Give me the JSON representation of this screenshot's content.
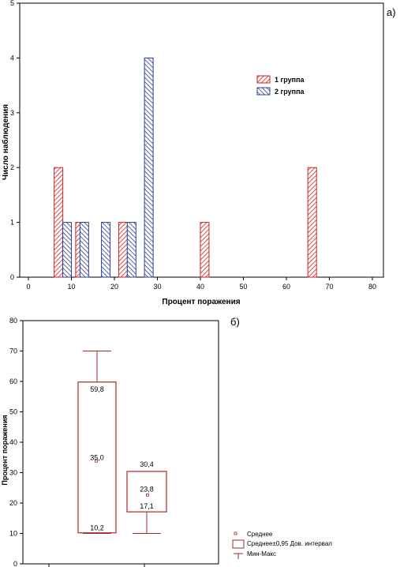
{
  "chart_data": [
    {
      "type": "bar",
      "panel_label": "а)",
      "xlabel": "Процент поражения",
      "ylabel": "Число наблюдения",
      "xlim": [
        0,
        80
      ],
      "ylim": [
        0,
        5
      ],
      "xticks": [
        0,
        10,
        20,
        30,
        40,
        50,
        60,
        70,
        80
      ],
      "yticks": [
        0,
        1,
        2,
        3,
        4,
        5
      ],
      "grid": false,
      "legend_position": "upper-right",
      "series": [
        {
          "name": "1 группа",
          "color": "#cc2222",
          "x": [
            7,
            12,
            22,
            41,
            66
          ],
          "values": [
            2,
            1,
            1,
            1,
            2
          ]
        },
        {
          "name": "2 группа",
          "color": "#2b3c8f",
          "x": [
            9,
            13,
            18,
            24,
            28
          ],
          "values": [
            1,
            1,
            1,
            1,
            4
          ]
        }
      ]
    },
    {
      "type": "box",
      "panel_label": "б)",
      "ylabel": "Процент поражения",
      "ylim": [
        0,
        80
      ],
      "yticks": [
        0,
        10,
        20,
        30,
        40,
        50,
        60,
        70,
        80
      ],
      "color": "#a52a2a",
      "legend": {
        "mean": "Среднее",
        "ci": "Среднее±0,95 Дов. интервал",
        "minmax": "Мин-Макс"
      },
      "groups": [
        {
          "mean": 35.0,
          "ci_low": 10.2,
          "ci_high": 59.8,
          "min": 10,
          "max": 70,
          "labels": {
            "mean": "35,0",
            "ci_low": "10,2",
            "ci_high": "59,8"
          }
        },
        {
          "mean": 23.8,
          "ci_low": 17.1,
          "ci_high": 30.4,
          "min": 10,
          "max": 30.4,
          "labels": {
            "mean": "23,8",
            "ci_low": "17,1",
            "ci_high": "30,4"
          }
        }
      ]
    }
  ]
}
